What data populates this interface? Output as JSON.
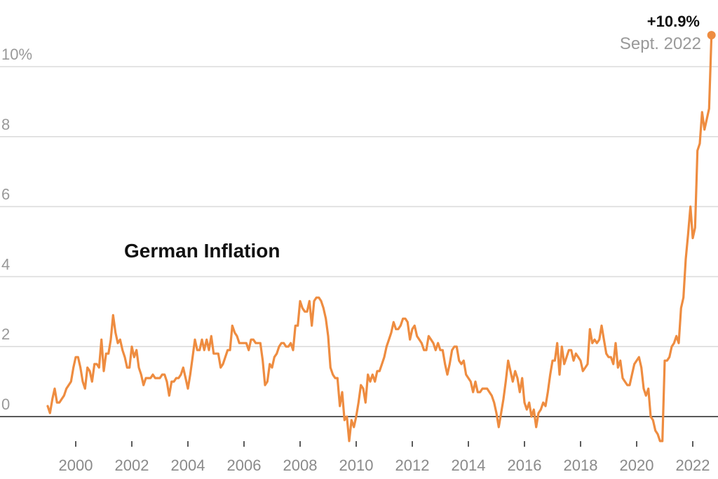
{
  "chart_data": {
    "type": "line",
    "title": "German Inflation",
    "xlabel": "",
    "ylabel": "",
    "y_ticks": [
      {
        "value": 0,
        "label": "0"
      },
      {
        "value": 2,
        "label": "2"
      },
      {
        "value": 4,
        "label": "4"
      },
      {
        "value": 6,
        "label": "6"
      },
      {
        "value": 8,
        "label": "8"
      },
      {
        "value": 10,
        "label": "10%"
      }
    ],
    "x_ticks": [
      "2000",
      "2002",
      "2004",
      "2006",
      "2008",
      "2010",
      "2012",
      "2014",
      "2016",
      "2018",
      "2020",
      "2022"
    ],
    "xlim": [
      "1999-01",
      "2022-09"
    ],
    "ylim": [
      -0.7,
      11.0
    ],
    "grid": true,
    "legend": "none",
    "line_color": "#ee8c40",
    "annotation": {
      "value_label": "+10.9%",
      "date_label": "Sept. 2022",
      "x": "2022-09",
      "y": 10.9
    },
    "series": [
      {
        "x_start": "1999-01",
        "frequency": "monthly",
        "values": [
          0.3,
          0.1,
          0.5,
          0.8,
          0.4,
          0.4,
          0.5,
          0.6,
          0.8,
          0.9,
          1.0,
          1.4,
          1.7,
          1.7,
          1.4,
          1.0,
          0.8,
          1.4,
          1.3,
          1.0,
          1.5,
          1.5,
          1.4,
          2.2,
          1.3,
          1.8,
          1.8,
          2.2,
          2.9,
          2.4,
          2.1,
          2.2,
          1.9,
          1.7,
          1.4,
          1.4,
          2.0,
          1.7,
          1.9,
          1.4,
          1.2,
          0.9,
          1.1,
          1.1,
          1.1,
          1.2,
          1.1,
          1.1,
          1.1,
          1.2,
          1.2,
          1.0,
          0.6,
          1.0,
          1.0,
          1.1,
          1.1,
          1.2,
          1.4,
          1.1,
          0.8,
          1.2,
          1.7,
          2.2,
          1.9,
          1.9,
          2.2,
          1.9,
          2.2,
          1.9,
          2.3,
          1.8,
          1.8,
          1.8,
          1.4,
          1.5,
          1.7,
          1.9,
          1.9,
          2.6,
          2.4,
          2.3,
          2.1,
          2.1,
          2.1,
          2.1,
          1.9,
          2.2,
          2.2,
          2.1,
          2.1,
          2.1,
          1.6,
          0.9,
          1.0,
          1.5,
          1.4,
          1.7,
          1.8,
          2.0,
          2.1,
          2.1,
          2.0,
          2.0,
          2.1,
          1.9,
          2.6,
          2.6,
          3.3,
          3.1,
          3.0,
          3.0,
          3.3,
          2.6,
          3.3,
          3.4,
          3.4,
          3.3,
          3.1,
          2.8,
          2.3,
          1.4,
          1.2,
          1.1,
          1.1,
          0.3,
          0.7,
          -0.1,
          0.0,
          -0.7,
          -0.1,
          -0.3,
          0.0,
          0.4,
          0.9,
          0.8,
          0.4,
          1.2,
          1.0,
          1.2,
          1.0,
          1.3,
          1.3,
          1.5,
          1.7,
          2.0,
          2.2,
          2.4,
          2.7,
          2.5,
          2.5,
          2.6,
          2.8,
          2.8,
          2.7,
          2.2,
          2.5,
          2.6,
          2.3,
          2.2,
          2.1,
          1.9,
          1.9,
          2.3,
          2.2,
          2.1,
          1.9,
          2.1,
          1.9,
          1.9,
          1.5,
          1.2,
          1.5,
          1.9,
          2.0,
          2.0,
          1.6,
          1.5,
          1.6,
          1.2,
          1.1,
          1.0,
          0.7,
          1.0,
          0.7,
          0.7,
          0.8,
          0.8,
          0.8,
          0.7,
          0.6,
          0.4,
          0.1,
          -0.3,
          0.1,
          0.5,
          1.0,
          1.6,
          1.3,
          1.0,
          1.3,
          1.1,
          0.7,
          1.1,
          0.4,
          0.2,
          0.4,
          0.0,
          0.2,
          -0.3,
          0.1,
          0.2,
          0.4,
          0.3,
          0.7,
          1.2,
          1.6,
          1.6,
          2.1,
          1.2,
          2.0,
          1.5,
          1.7,
          1.9,
          1.9,
          1.6,
          1.8,
          1.7,
          1.6,
          1.3,
          1.4,
          1.5,
          2.5,
          2.1,
          2.2,
          2.1,
          2.2,
          2.6,
          2.2,
          1.8,
          1.7,
          1.7,
          1.5,
          2.1,
          1.4,
          1.6,
          1.1,
          1.0,
          0.9,
          0.9,
          1.2,
          1.5,
          1.6,
          1.7,
          1.4,
          0.8,
          0.6,
          0.8,
          0.0,
          -0.1,
          -0.4,
          -0.5,
          -0.7,
          -0.7,
          1.6,
          1.6,
          1.7,
          2.0,
          2.1,
          2.3,
          2.1,
          3.1,
          3.4,
          4.5,
          5.2,
          6.0,
          5.1,
          5.4,
          7.6,
          7.8,
          8.7,
          8.2,
          8.5,
          8.8,
          10.9
        ]
      }
    ]
  }
}
